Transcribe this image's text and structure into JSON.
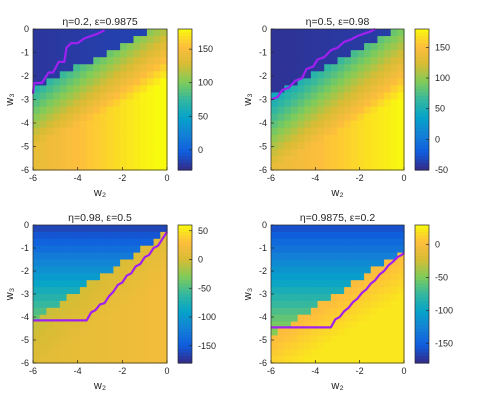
{
  "chart_data": [
    {
      "type": "heatmap",
      "title": "η=0.2,  ε=0.9875",
      "xlabel": "w₂",
      "ylabel": "w₃",
      "xlim": [
        -6,
        0
      ],
      "ylim": [
        -6,
        0
      ],
      "xticks": [
        "-6",
        "-4",
        "-2",
        "0"
      ],
      "yticks": [
        "0",
        "-1",
        "-2",
        "-3",
        "-4",
        "-5",
        "-6"
      ],
      "colorbar": {
        "range": [
          -30,
          180
        ],
        "ticks": [
          "150",
          "100",
          "50",
          "0"
        ],
        "tick_values": [
          150,
          100,
          50,
          0
        ]
      },
      "boundary": {
        "color": "#a020f0",
        "x": [
          -6,
          -5.95,
          -5.6,
          -5.3,
          -5.1,
          -4.85,
          -4.6,
          -4.5,
          -4.3,
          -4.0,
          -3.7,
          -3.4,
          -3.1,
          -2.8
        ],
        "y": [
          -2.75,
          -2.3,
          -2.3,
          -1.85,
          -1.85,
          -1.4,
          -1.4,
          -0.8,
          -0.6,
          -0.6,
          -0.4,
          -0.3,
          -0.2,
          -0.05
        ]
      }
    },
    {
      "type": "heatmap",
      "title": "η=0.5,  ε=0.98",
      "xlabel": "w₂",
      "ylabel": "w₃",
      "xlim": [
        -6,
        0
      ],
      "ylim": [
        -6,
        0
      ],
      "xticks": [
        "-6",
        "-4",
        "-2",
        "0"
      ],
      "yticks": [
        "0",
        "-1",
        "-2",
        "-3",
        "-4",
        "-5",
        "-6"
      ],
      "colorbar": {
        "range": [
          -50,
          180
        ],
        "ticks": [
          "150",
          "100",
          "50",
          "0",
          "-50"
        ],
        "tick_values": [
          150,
          100,
          50,
          0,
          -50
        ]
      },
      "boundary": {
        "color": "#a020f0",
        "x": [
          -6,
          -5.7,
          -5.5,
          -5.2,
          -4.9,
          -4.6,
          -4.4,
          -4.1,
          -3.9,
          -3.6,
          -3.3,
          -3.0,
          -2.7,
          -2.4,
          -2.1,
          -1.8,
          -1.5,
          -1.3
        ],
        "y": [
          -3.0,
          -2.9,
          -2.6,
          -2.5,
          -2.2,
          -2.1,
          -1.7,
          -1.6,
          -1.3,
          -1.2,
          -0.9,
          -0.8,
          -0.55,
          -0.45,
          -0.3,
          -0.2,
          -0.1,
          0
        ]
      }
    },
    {
      "type": "heatmap",
      "title": "η=0.98,  ε=0.5",
      "xlabel": "w₂",
      "ylabel": "w₃",
      "xlim": [
        -6,
        0
      ],
      "ylim": [
        -6,
        0
      ],
      "xticks": [
        "-6",
        "-4",
        "-2",
        "0"
      ],
      "yticks": [
        "0",
        "-1",
        "-2",
        "-3",
        "-4",
        "-5",
        "-6"
      ],
      "colorbar": {
        "range": [
          -180,
          60
        ],
        "ticks": [
          "50",
          "0",
          "-50",
          "-100",
          "-150"
        ],
        "tick_values": [
          50,
          0,
          -50,
          -100,
          -150
        ]
      },
      "boundary": {
        "color": "#a020f0",
        "x": [
          -6,
          -3.6,
          -3.4,
          -3.2,
          -3.0,
          -2.8,
          -2.6,
          -2.4,
          -2.2,
          -2.0,
          -1.8,
          -1.6,
          -1.4,
          -1.2,
          -1.0,
          -0.8,
          -0.6,
          -0.4,
          -0.2,
          0
        ],
        "y": [
          -4.15,
          -4.15,
          -3.8,
          -3.7,
          -3.45,
          -3.4,
          -3.1,
          -2.9,
          -2.6,
          -2.5,
          -2.2,
          -2.1,
          -1.8,
          -1.7,
          -1.4,
          -1.3,
          -1.0,
          -0.9,
          -0.6,
          -0.3
        ]
      }
    },
    {
      "type": "heatmap",
      "title": "η=0.9875,  ε=0.2",
      "xlabel": "w₂",
      "ylabel": "w₃",
      "xlim": [
        -6,
        0
      ],
      "ylim": [
        -6,
        0
      ],
      "xticks": [
        "-6",
        "-4",
        "-2",
        "0"
      ],
      "yticks": [
        "0",
        "-1",
        "-2",
        "-3",
        "-4",
        "-5",
        "-6"
      ],
      "colorbar": {
        "range": [
          -180,
          30
        ],
        "ticks": [
          "0",
          "-50",
          "-100",
          "-150"
        ],
        "tick_values": [
          0,
          -50,
          -100,
          -150
        ]
      },
      "boundary": {
        "color": "#a020f0",
        "x": [
          -6,
          -3.3,
          -3.1,
          -2.9,
          -2.7,
          -2.5,
          -2.3,
          -2.1,
          -1.9,
          -1.7,
          -1.5,
          -1.3,
          -1.1,
          -0.9,
          -0.7,
          -0.5,
          -0.3,
          -0.1,
          0
        ],
        "y": [
          -4.45,
          -4.45,
          -4.1,
          -4.0,
          -3.75,
          -3.6,
          -3.35,
          -3.2,
          -2.95,
          -2.8,
          -2.55,
          -2.4,
          -2.15,
          -2.0,
          -1.75,
          -1.6,
          -1.4,
          -1.3,
          -1.2
        ]
      }
    }
  ]
}
